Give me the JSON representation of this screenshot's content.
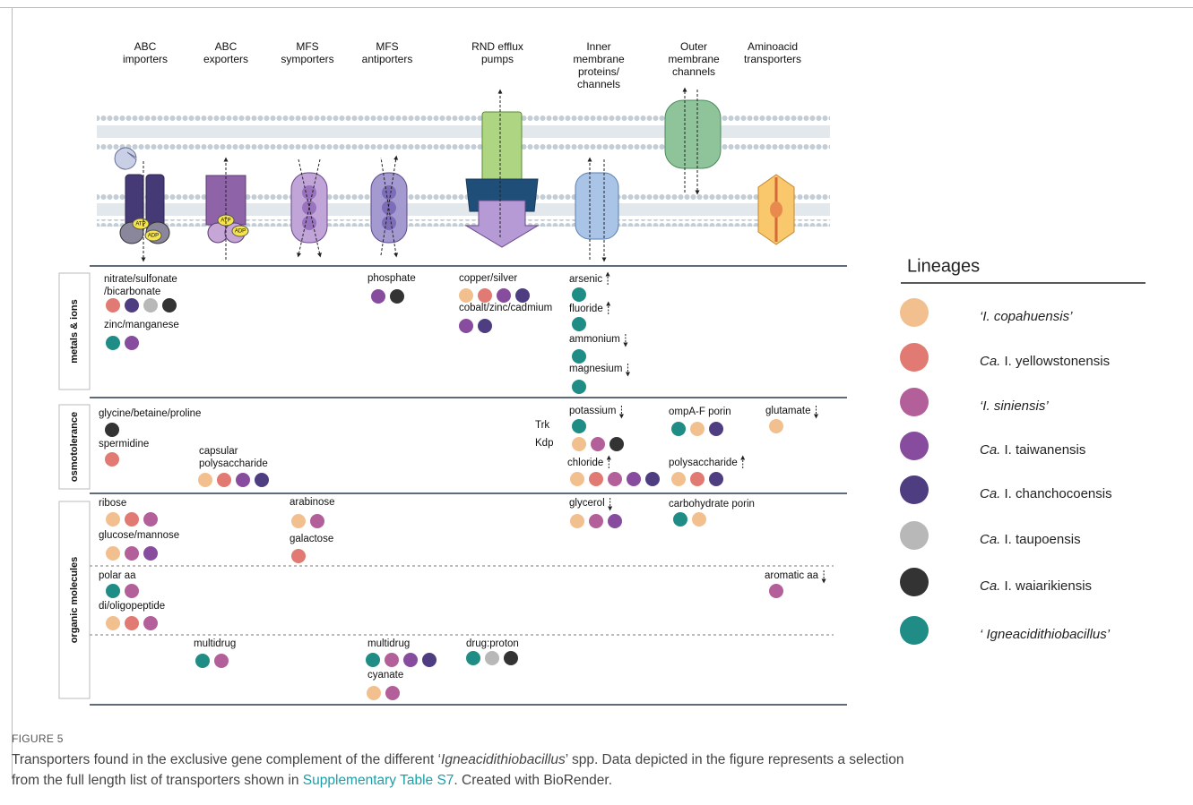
{
  "headers": [
    [
      "ABC",
      "importers"
    ],
    [
      "ABC",
      "exporters"
    ],
    [
      "MFS",
      "symporters"
    ],
    [
      "MFS",
      "antiporters"
    ],
    [
      "RND efflux",
      "pumps"
    ],
    [
      "Inner",
      "membrane",
      "proteins/",
      "channels"
    ],
    [
      "Outer",
      "membrane",
      "channels"
    ],
    [
      "Aminoacid",
      "transporters"
    ]
  ],
  "membrane_labels": {
    "atp_importer": "ATP",
    "adp_importer": "ADP",
    "atp_exporter": "ATP",
    "adp_exporter": "ADP"
  },
  "sections": [
    "metals & ions",
    "osmotolerance",
    "organic molecules"
  ],
  "entries": [
    {
      "label": [
        "nitrate/sulfonate",
        "/bicarbonate"
      ],
      "dots": [
        "#e07a72",
        "#4e3d80",
        "#b8b8b8",
        "#333333"
      ]
    },
    {
      "label": [
        "zinc/manganese"
      ],
      "dots": [
        "#1f8c86",
        "#874c9e"
      ]
    },
    {
      "label": [
        "phosphate"
      ],
      "dots": [
        "#874c9e",
        "#333333"
      ]
    },
    {
      "label": [
        "copper/silver"
      ],
      "dots": [
        "#f2c08f",
        "#e07a72",
        "#874c9e",
        "#4e3d80"
      ]
    },
    {
      "label": [
        "cobalt/zinc/cadmium"
      ],
      "dots": [
        "#874c9e",
        "#4e3d80"
      ]
    },
    {
      "label": [
        "arsenic"
      ],
      "dots": [
        "#1f8c86"
      ]
    },
    {
      "label": [
        "fluoride"
      ],
      "dots": [
        "#1f8c86"
      ]
    },
    {
      "label": [
        "ammonium"
      ],
      "dots": [
        "#1f8c86"
      ]
    },
    {
      "label": [
        "magnesium"
      ],
      "dots": [
        "#1f8c86"
      ]
    },
    {
      "label": [
        "glycine/betaine/proline"
      ],
      "dots": [
        "#333333"
      ]
    },
    {
      "label": [
        "spermidine"
      ],
      "dots": [
        "#e07a72"
      ]
    },
    {
      "label": [
        "capsular",
        "polysaccharide"
      ],
      "dots": [
        "#f2c08f",
        "#e07a72",
        "#874c9e",
        "#4e3d80"
      ]
    },
    {
      "label": [
        "potassium"
      ]
    },
    {
      "label": [
        "Trk"
      ],
      "dots": [
        "#1f8c86"
      ]
    },
    {
      "label": [
        "Kdp"
      ],
      "dots": [
        "#f2c08f",
        "#b35f9a",
        "#333333"
      ]
    },
    {
      "label": [
        "chloride"
      ],
      "dots": [
        "#f2c08f",
        "#e07a72",
        "#b35f9a",
        "#874c9e",
        "#4e3d80"
      ]
    },
    {
      "label": [
        "ompA-F porin"
      ],
      "dots": [
        "#1f8c86",
        "#f2c08f",
        "#4e3d80"
      ]
    },
    {
      "label": [
        "polysaccharide"
      ],
      "dots": [
        "#f2c08f",
        "#e07a72",
        "#4e3d80"
      ]
    },
    {
      "label": [
        "glutamate"
      ],
      "dots": [
        "#f2c08f"
      ]
    },
    {
      "label": [
        "ribose"
      ],
      "dots": [
        "#f2c08f",
        "#e07a72",
        "#b35f9a"
      ]
    },
    {
      "label": [
        "glucose/mannose"
      ],
      "dots": [
        "#f2c08f",
        "#b35f9a",
        "#874c9e"
      ]
    },
    {
      "label": [
        "arabinose"
      ],
      "dots": [
        "#f2c08f",
        "#b35f9a"
      ]
    },
    {
      "label": [
        "galactose"
      ],
      "dots": [
        "#e07a72"
      ]
    },
    {
      "label": [
        "glycerol"
      ],
      "dots": [
        "#f2c08f",
        "#b35f9a",
        "#874c9e"
      ]
    },
    {
      "label": [
        "carbohydrate porin"
      ],
      "dots": [
        "#1f8c86",
        "#f2c08f"
      ]
    },
    {
      "label": [
        "polar aa"
      ],
      "dots": [
        "#1f8c86",
        "#b35f9a"
      ]
    },
    {
      "label": [
        "di/oligopeptide"
      ],
      "dots": [
        "#f2c08f",
        "#e07a72",
        "#b35f9a"
      ]
    },
    {
      "label": [
        "aromatic aa"
      ],
      "dots": [
        "#b35f9a"
      ]
    },
    {
      "label": [
        "multidrug"
      ],
      "dots": [
        "#1f8c86",
        "#b35f9a"
      ]
    },
    {
      "label": [
        "multidrug"
      ],
      "dots": [
        "#1f8c86",
        "#b35f9a",
        "#874c9e",
        "#4e3d80"
      ]
    },
    {
      "label": [
        "cyanate"
      ],
      "dots": [
        "#f2c08f",
        "#b35f9a"
      ]
    },
    {
      "label": [
        "drug:proton"
      ],
      "dots": [
        "#1f8c86",
        "#b8b8b8",
        "#333333"
      ]
    }
  ],
  "legend": {
    "title": "Lineages",
    "items": [
      {
        "prefix": "‘I. copahuensis’",
        "color": "#f2c08f"
      },
      {
        "prefix": "Ca.",
        "name": " I. yellowstonensis",
        "color": "#e07a72"
      },
      {
        "prefix": "‘I. siniensis’",
        "color": "#b35f9a"
      },
      {
        "prefix": "Ca.",
        "name": " I. taiwanensis",
        "color": "#874c9e"
      },
      {
        "prefix": "Ca.",
        "name": " I. chanchocoensis",
        "color": "#4e3d80"
      },
      {
        "prefix": "Ca.",
        "name": " I. taupoensis",
        "color": "#b8b8b8"
      },
      {
        "prefix": "Ca.",
        "name": " I. waiarikiensis",
        "color": "#333333"
      },
      {
        "prefix": "‘ Igneacidithiobacillu",
        "name": "s’",
        "color": "#1f8c86"
      }
    ]
  },
  "caption": {
    "figure": "FIGURE 5",
    "line1": [
      "Transporters found in the exclusive gene complement of the different ‘",
      "Igneacidithiobacillus",
      "’ spp. Data depicted in the figure represents a selection"
    ],
    "line2": [
      "from the full length list of transporters shown in ",
      "Supplementary Table S7",
      ". Created with BioRender."
    ]
  }
}
